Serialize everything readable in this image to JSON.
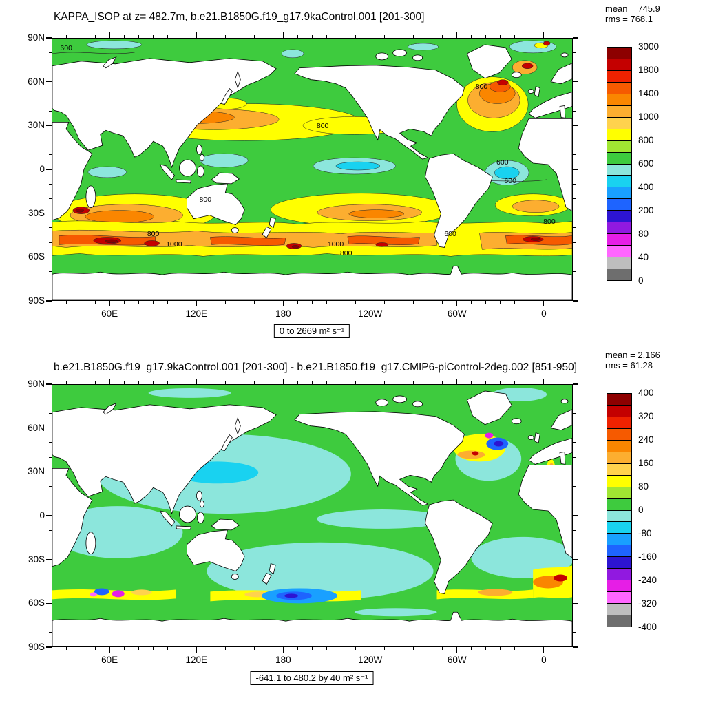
{
  "palette": {
    "land": "#ffffff",
    "ocean": "#3ecb3e",
    "ygreen": "#a0e632",
    "yellow": "#ffff00",
    "gold": "#ffd24d",
    "lorange": "#fcae30",
    "orange": "#fa8600",
    "dorange": "#f65a00",
    "red": "#c40000",
    "dred": "#8d0000",
    "pcyan": "#8ce6dc",
    "cyan": "#19d2f0",
    "lblue": "#19a0ff",
    "blue": "#1e64ff",
    "indigo": "#2d14d2",
    "purple": "#9119e0",
    "magenta": "#e61ee6",
    "pink": "#ff66ff",
    "gray": "#bebebe",
    "dgray": "#6e6e6e"
  },
  "chart_data": [
    {
      "type": "heatmap",
      "kind": "filled-contour global map, cylindrical equidistant, longitudes 20E eastward around to 20E",
      "title": "KAPPA_ISOP at z= 482.7m, b.e21.B1850G.f19_g17.9kaControl.001 [201-300]",
      "stats": {
        "mean": "mean = 745.9",
        "rms": "rms = 768.1"
      },
      "range_caption": "0 to 2669 m² s⁻¹",
      "units": "m² s⁻¹",
      "data_range": {
        "min": 0,
        "max": 2669
      },
      "xticks": {
        "labels": [
          "60E",
          "120E",
          "180",
          "120W",
          "60W",
          "0"
        ],
        "fracs": [
          0.1111,
          0.2778,
          0.4444,
          0.6111,
          0.7778,
          0.9444
        ]
      },
      "yticks": {
        "labels": [
          "90N",
          "60N",
          "30N",
          "0",
          "30S",
          "60S",
          "90S"
        ]
      },
      "colorbar": {
        "levels": [
          0,
          40,
          80,
          200,
          400,
          600,
          800,
          1000,
          1400,
          1800,
          3000
        ],
        "labels": [
          "3000",
          "1800",
          "1400",
          "1000",
          "800",
          "600",
          "400",
          "200",
          "80",
          "40",
          "0"
        ],
        "colors_top_to_bottom": [
          "#8d0000",
          "#c40000",
          "#ef2200",
          "#f65a00",
          "#fa8600",
          "#fcae30",
          "#ffd24d",
          "#ffff00",
          "#a0e632",
          "#3ecb3e",
          "#8ce6dc",
          "#19d2f0",
          "#19a0ff",
          "#1e64ff",
          "#2d14d2",
          "#9119e0",
          "#e61ee6",
          "#ff66ff",
          "#bebebe",
          "#6e6e6e"
        ]
      },
      "contour_labels": [
        {
          "text": "600",
          "x": 2.8,
          "y": 4.0
        },
        {
          "text": "800",
          "x": 52.0,
          "y": 33.5
        },
        {
          "text": "800",
          "x": 82.5,
          "y": 18.5
        },
        {
          "text": "600",
          "x": 86.5,
          "y": 47.5
        },
        {
          "text": "600",
          "x": 88.0,
          "y": 54.5
        },
        {
          "text": "800",
          "x": 29.5,
          "y": 61.5
        },
        {
          "text": "800",
          "x": 19.5,
          "y": 74.5
        },
        {
          "text": "1000",
          "x": 23.5,
          "y": 78.5
        },
        {
          "text": "1000",
          "x": 54.5,
          "y": 78.5
        },
        {
          "text": "800",
          "x": 56.5,
          "y": 82.0
        },
        {
          "text": "600",
          "x": 76.5,
          "y": 74.5
        },
        {
          "text": "800",
          "x": 95.5,
          "y": 70.0
        }
      ]
    },
    {
      "type": "heatmap",
      "kind": "filled-contour global difference map, cylindrical equidistant",
      "title": "b.e21.B1850G.f19_g17.9kaControl.001 [201-300] - b.e21.B1850.f19_g17.CMIP6-piControl-2deg.002 [851-950]",
      "stats": {
        "mean": "mean = 2.166",
        "rms": "rms = 61.28"
      },
      "range_caption": "-641.1 to 480.2 by 40 m² s⁻¹",
      "units": "m² s⁻¹",
      "data_range": {
        "min": -641.1,
        "max": 480.2,
        "step": 40
      },
      "xticks": {
        "labels": [
          "60E",
          "120E",
          "180",
          "120W",
          "60W",
          "0"
        ],
        "fracs": [
          0.1111,
          0.2778,
          0.4444,
          0.6111,
          0.7778,
          0.9444
        ]
      },
      "yticks": {
        "labels": [
          "90N",
          "60N",
          "30N",
          "0",
          "30S",
          "60S",
          "90S"
        ]
      },
      "colorbar": {
        "levels": [
          -400,
          -320,
          -240,
          -160,
          -80,
          0,
          80,
          160,
          240,
          320,
          400
        ],
        "labels": [
          "400",
          "320",
          "240",
          "160",
          "80",
          "0",
          "-80",
          "-160",
          "-240",
          "-320",
          "-400"
        ],
        "colors_top_to_bottom": [
          "#8d0000",
          "#c40000",
          "#ef2200",
          "#f65a00",
          "#fa8600",
          "#fcae30",
          "#ffd24d",
          "#ffff00",
          "#a0e632",
          "#3ecb3e",
          "#8ce6dc",
          "#19d2f0",
          "#19a0ff",
          "#1e64ff",
          "#2d14d2",
          "#9119e0",
          "#e61ee6",
          "#ff66ff",
          "#bebebe",
          "#6e6e6e"
        ]
      },
      "contour_labels": []
    }
  ]
}
